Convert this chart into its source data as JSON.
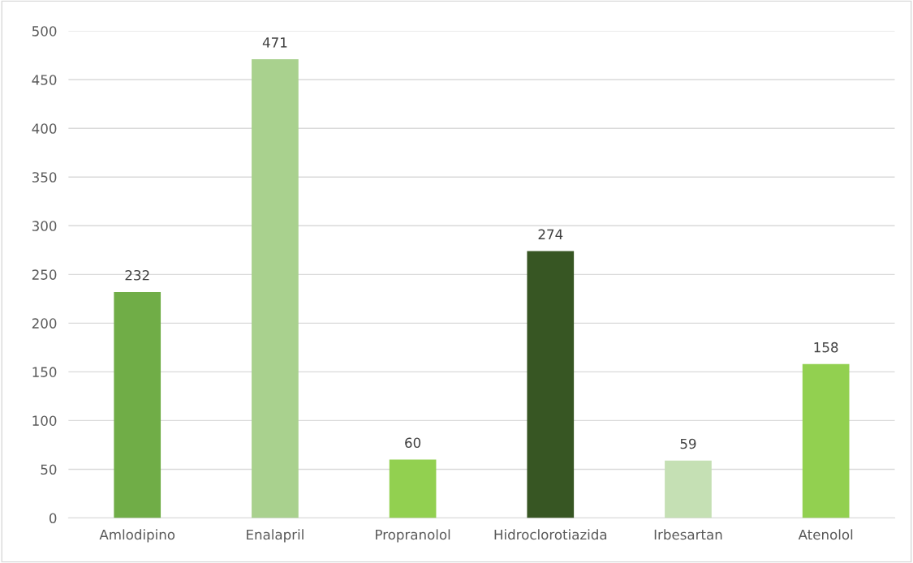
{
  "chart_data": {
    "type": "bar",
    "categories": [
      "Amlodipino",
      "Enalapril",
      "Propranolol",
      "Hidroclorotiazida",
      "Irbesartan",
      "Atenolol"
    ],
    "values": [
      232,
      471,
      60,
      274,
      59,
      158
    ],
    "colors": [
      "#70ad47",
      "#a9d18e",
      "#92d050",
      "#375623",
      "#c5e0b4",
      "#92d050"
    ],
    "ylim": [
      0,
      500
    ],
    "yticks": [
      0,
      50,
      100,
      150,
      200,
      250,
      300,
      350,
      400,
      450,
      500
    ],
    "grid": "y",
    "data_labels": true
  }
}
